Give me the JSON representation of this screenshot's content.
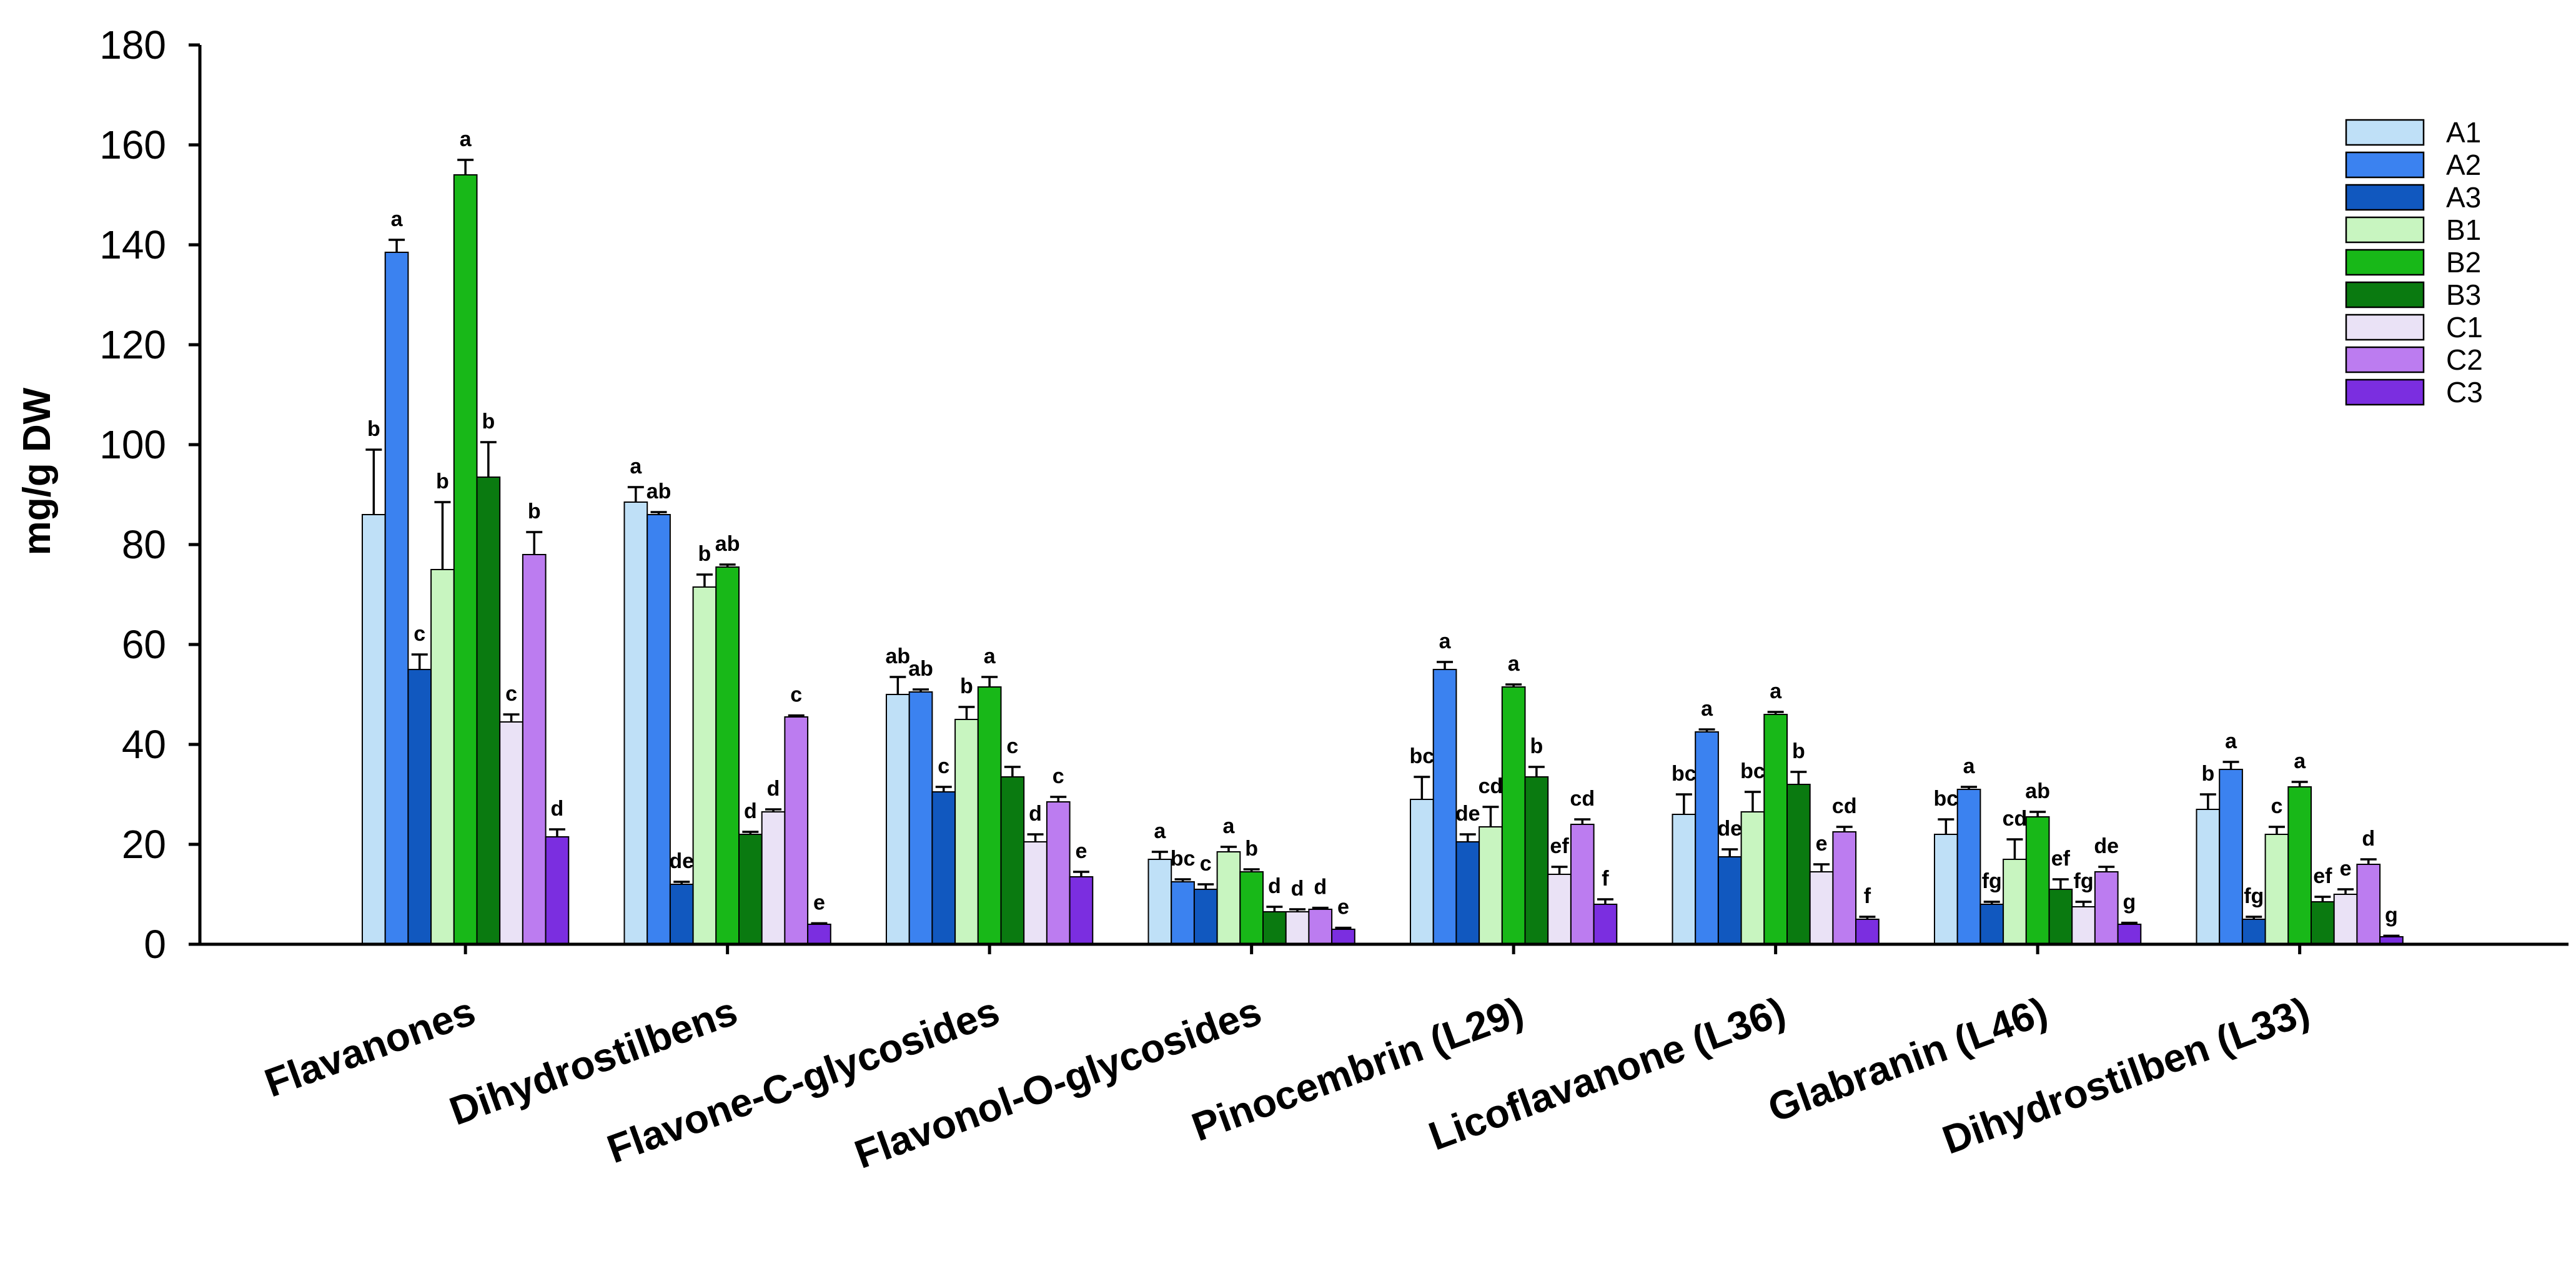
{
  "chart_data": {
    "type": "bar",
    "title": "",
    "xlabel": "",
    "ylabel": "mg/g DW",
    "ylim": [
      0,
      180
    ],
    "yticks": [
      0,
      20,
      40,
      60,
      80,
      100,
      120,
      140,
      160,
      180
    ],
    "grid": false,
    "legend_position": "top-right",
    "categories": [
      "Flavanones",
      "Dihydrostilbens",
      "Flavone-C-glycosides",
      "Flavonol-O-glycosides",
      "Pinocembrin (L29)",
      "Licoflavanone (L36)",
      "Glabranin (L46)",
      "Dihydrostilben (L33)"
    ],
    "series": [
      {
        "name": "A1",
        "color": "#bfe0f7",
        "values": [
          86,
          88.5,
          50,
          17,
          29,
          26,
          22,
          27
        ],
        "errors": [
          13,
          3,
          3.5,
          1.5,
          4.5,
          4,
          3,
          3
        ],
        "letters": [
          "b",
          "a",
          "ab",
          "a",
          "bc",
          "bc",
          "bc",
          "b"
        ]
      },
      {
        "name": "A2",
        "color": "#3b82f0",
        "values": [
          138.5,
          86,
          50.5,
          12.5,
          55,
          42.5,
          31,
          35
        ],
        "errors": [
          2.5,
          0.5,
          0.5,
          0.5,
          1.5,
          0.5,
          0.5,
          1.5
        ],
        "letters": [
          "a",
          "ab",
          "ab",
          "bc",
          "a",
          "a",
          "a",
          "a"
        ]
      },
      {
        "name": "A3",
        "color": "#1158bf",
        "values": [
          55,
          12,
          30.5,
          11,
          20.5,
          17.5,
          8,
          5
        ],
        "errors": [
          3,
          0.5,
          1,
          1,
          1.5,
          1.5,
          0.5,
          0.5
        ],
        "letters": [
          "c",
          "de",
          "c",
          "c",
          "de",
          "de",
          "fg",
          "fg"
        ]
      },
      {
        "name": "B1",
        "color": "#c8f5c0",
        "values": [
          75,
          71.5,
          45,
          18.5,
          23.5,
          26.5,
          17,
          22
        ],
        "errors": [
          13.5,
          2.5,
          2.5,
          1,
          4,
          4,
          4,
          1.5
        ],
        "letters": [
          "b",
          "b",
          "b",
          "a",
          "cd",
          "bc",
          "cd",
          "c"
        ]
      },
      {
        "name": "B2",
        "color": "#18b818",
        "values": [
          154,
          75.5,
          51.5,
          14.5,
          51.5,
          46,
          25.5,
          31.5
        ],
        "errors": [
          3,
          0.5,
          2,
          0.5,
          0.5,
          0.5,
          1,
          1
        ],
        "letters": [
          "a",
          "ab",
          "a",
          "b",
          "a",
          "a",
          "ab",
          "a"
        ]
      },
      {
        "name": "B3",
        "color": "#0a7a10",
        "values": [
          93.5,
          22,
          33.5,
          6.5,
          33.5,
          32,
          11,
          8.5
        ],
        "errors": [
          7,
          0.5,
          2,
          1,
          2,
          2.5,
          2,
          1
        ],
        "letters": [
          "b",
          "d",
          "c",
          "d",
          "b",
          "b",
          "ef",
          "ef"
        ]
      },
      {
        "name": "C1",
        "color": "#eae2f6",
        "values": [
          44.5,
          26.5,
          20.5,
          6.5,
          14,
          14.5,
          7.5,
          10
        ],
        "errors": [
          1.5,
          0.5,
          1.5,
          0.5,
          1.5,
          1.5,
          1,
          1
        ],
        "letters": [
          "c",
          "d",
          "d",
          "d",
          "ef",
          "e",
          "fg",
          "e"
        ]
      },
      {
        "name": "C2",
        "color": "#bc7cf0",
        "values": [
          78,
          45.5,
          28.5,
          7,
          24,
          22.5,
          14.5,
          16
        ],
        "errors": [
          4.5,
          0.3,
          1,
          0.3,
          1,
          1,
          1,
          1
        ],
        "letters": [
          "b",
          "c",
          "c",
          "d",
          "cd",
          "cd",
          "de",
          "d"
        ]
      },
      {
        "name": "C3",
        "color": "#7b2ee0",
        "values": [
          21.5,
          4,
          13.5,
          3,
          8,
          5,
          4,
          1.5
        ],
        "errors": [
          1.5,
          0.2,
          1,
          0.3,
          1,
          0.5,
          0.3,
          0.2
        ],
        "letters": [
          "d",
          "e",
          "e",
          "e",
          "f",
          "f",
          "g",
          "g"
        ]
      }
    ]
  }
}
